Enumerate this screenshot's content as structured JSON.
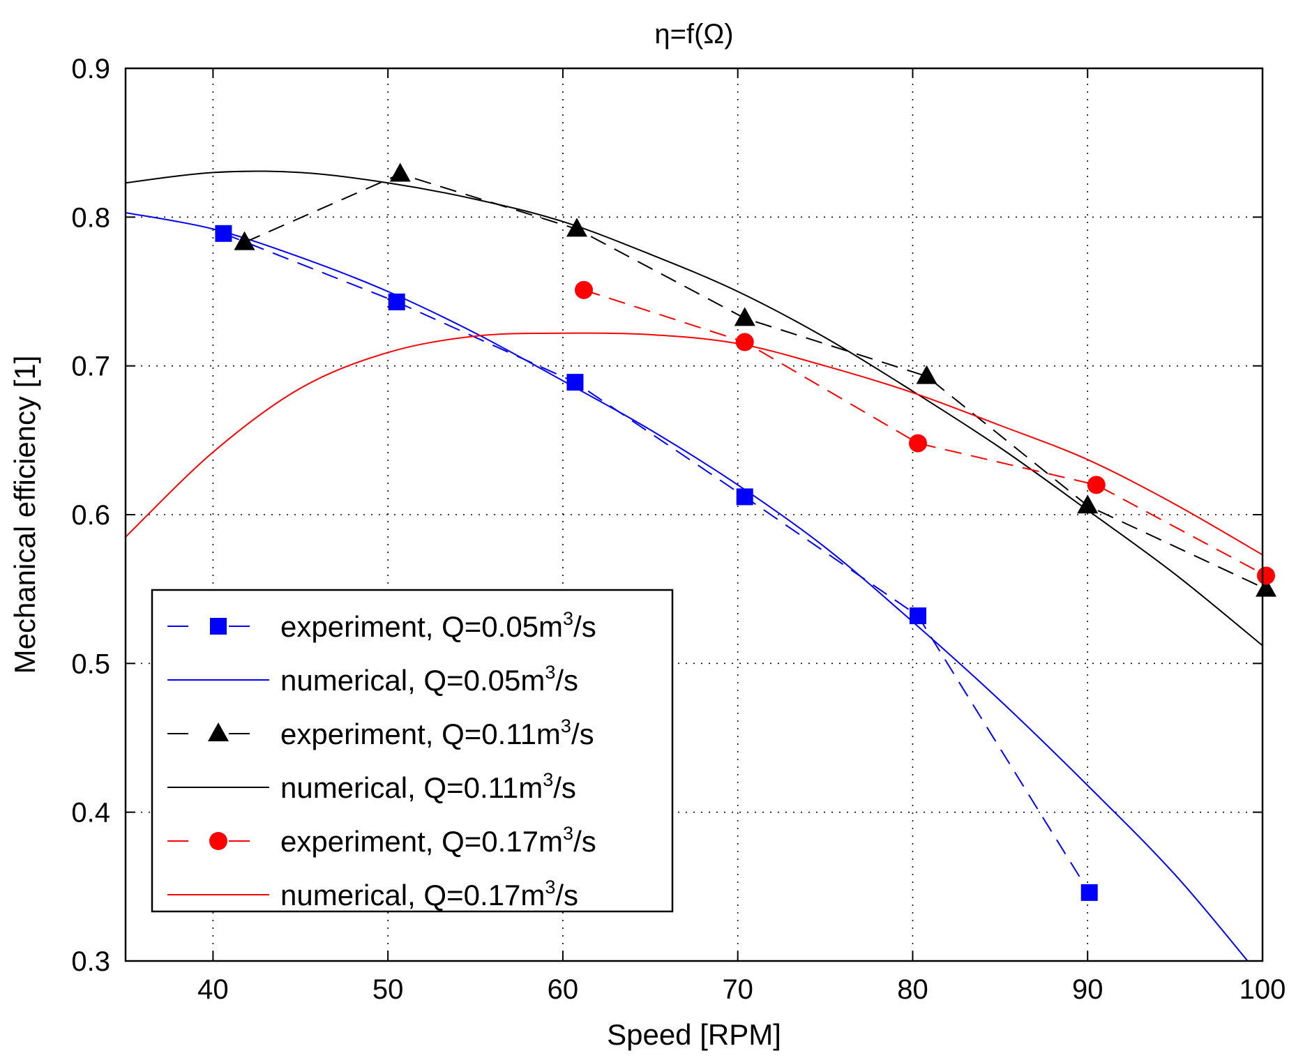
{
  "chart_data": {
    "type": "line",
    "title": "η=f(Ω)",
    "xlabel": "Speed [RPM]",
    "ylabel": "Mechanical efficiency [1]",
    "xlim": [
      35,
      100
    ],
    "ylim": [
      0.3,
      0.9
    ],
    "grid": true,
    "xticks": [
      40,
      50,
      60,
      70,
      80,
      90,
      100
    ],
    "yticks": [
      0.3,
      0.4,
      0.5,
      0.6,
      0.7,
      0.8,
      0.9
    ],
    "xtick_labels": [
      "40",
      "50",
      "60",
      "70",
      "80",
      "90",
      "100"
    ],
    "ytick_labels": [
      "0.3",
      "0.4",
      "0.5",
      "0.6",
      "0.7",
      "0.8",
      "0.9"
    ],
    "legend_position": "lower-left",
    "series": [
      {
        "name": "experiment, Q=0.05m3/s",
        "label_main": "experiment, Q=0.05m",
        "label_sup": "3",
        "label_tail": "/s",
        "kind": "experiment",
        "color": "#0000ff",
        "marker": "square",
        "x": [
          40.6,
          50.5,
          60.7,
          70.4,
          80.3,
          90.1
        ],
        "y": [
          0.789,
          0.743,
          0.689,
          0.612,
          0.532,
          0.346
        ]
      },
      {
        "name": "numerical, Q=0.05m3/s",
        "label_main": "numerical, Q=0.05m",
        "label_sup": "3",
        "label_tail": "/s",
        "kind": "numerical",
        "color": "#0000ff",
        "marker": "none",
        "x": [
          35,
          40,
          45,
          50,
          55,
          60,
          65,
          70,
          75,
          80,
          85,
          90,
          95,
          99.5
        ],
        "y": [
          0.803,
          0.792,
          0.773,
          0.75,
          0.722,
          0.69,
          0.657,
          0.62,
          0.578,
          0.528,
          0.475,
          0.418,
          0.358,
          0.295
        ]
      },
      {
        "name": "experiment, Q=0.11m3/s",
        "label_main": "experiment, Q=0.11m",
        "label_sup": "3",
        "label_tail": "/s",
        "kind": "experiment",
        "color": "#000000",
        "marker": "triangle",
        "x": [
          41.8,
          50.7,
          60.8,
          70.4,
          80.8,
          90.0,
          100.2
        ],
        "y": [
          0.783,
          0.829,
          0.792,
          0.732,
          0.693,
          0.606,
          0.55
        ]
      },
      {
        "name": "numerical, Q=0.11m3/s",
        "label_main": "numerical, Q=0.11m",
        "label_sup": "3",
        "label_tail": "/s",
        "kind": "numerical",
        "color": "#000000",
        "marker": "none",
        "x": [
          35,
          40,
          45,
          50,
          55,
          60,
          65,
          70,
          75,
          80,
          85,
          90,
          95,
          100
        ],
        "y": [
          0.823,
          0.83,
          0.83,
          0.823,
          0.812,
          0.797,
          0.775,
          0.75,
          0.719,
          0.683,
          0.645,
          0.603,
          0.56,
          0.512
        ]
      },
      {
        "name": "experiment, Q=0.17m3/s",
        "label_main": "experiment, Q=0.17m",
        "label_sup": "3",
        "label_tail": "/s",
        "kind": "experiment",
        "color": "#ff0000",
        "marker": "circle",
        "x": [
          61.2,
          70.4,
          80.3,
          90.5,
          100.2
        ],
        "y": [
          0.751,
          0.716,
          0.648,
          0.62,
          0.559
        ]
      },
      {
        "name": "numerical, Q=0.17m3/s",
        "label_main": "numerical, Q=0.17m",
        "label_sup": "3",
        "label_tail": "/s",
        "kind": "numerical",
        "color": "#ff0000",
        "marker": "none",
        "x": [
          35,
          40,
          45,
          50,
          55,
          60,
          65,
          70,
          75,
          80,
          85,
          90,
          95,
          100
        ],
        "y": [
          0.585,
          0.642,
          0.685,
          0.709,
          0.72,
          0.722,
          0.721,
          0.715,
          0.7,
          0.682,
          0.66,
          0.637,
          0.607,
          0.573
        ]
      }
    ]
  }
}
